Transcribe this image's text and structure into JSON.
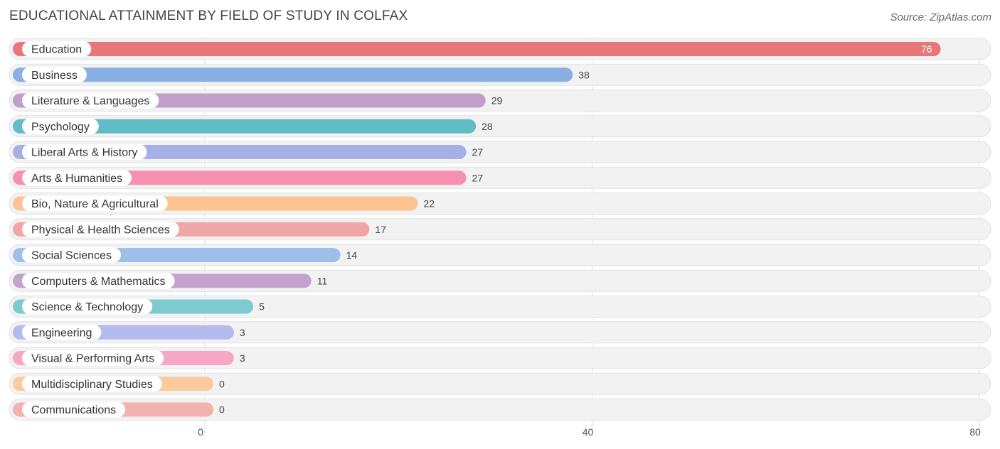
{
  "header": {
    "title": "EDUCATIONAL ATTAINMENT BY FIELD OF STUDY IN COLFAX",
    "source": "Source: ZipAtlas.com"
  },
  "chart_data": {
    "type": "bar",
    "orientation": "horizontal",
    "title": "EDUCATIONAL ATTAINMENT BY FIELD OF STUDY IN COLFAX",
    "categories": [
      "Education",
      "Business",
      "Literature & Languages",
      "Psychology",
      "Liberal Arts & History",
      "Arts & Humanities",
      "Bio, Nature & Agricultural",
      "Physical & Health Sciences",
      "Social Sciences",
      "Computers & Mathematics",
      "Science & Technology",
      "Engineering",
      "Visual & Performing Arts",
      "Multidisciplinary Studies",
      "Communications"
    ],
    "values": [
      76,
      38,
      29,
      28,
      27,
      27,
      22,
      17,
      14,
      11,
      5,
      3,
      3,
      0,
      0
    ],
    "value_labels": [
      "76",
      "38",
      "29",
      "28",
      "27",
      "27",
      "22",
      "17",
      "14",
      "11",
      "5",
      "3",
      "3",
      "0",
      "0"
    ],
    "colors": [
      "#e8777a",
      "#89b0e3",
      "#c29fcb",
      "#62bcc5",
      "#a6b0e6",
      "#f78fb0",
      "#fbc491",
      "#f0a6a4",
      "#9ebfea",
      "#c3a3cd",
      "#7dcbd0",
      "#b3baec",
      "#f7a6c4",
      "#fbcb9e",
      "#f2b2b0"
    ],
    "xlim": [
      0,
      80
    ],
    "x_ticks": [
      0,
      40,
      80
    ],
    "x_tick_labels": [
      "0",
      "40",
      "80"
    ],
    "grid": true,
    "legend": "none"
  }
}
